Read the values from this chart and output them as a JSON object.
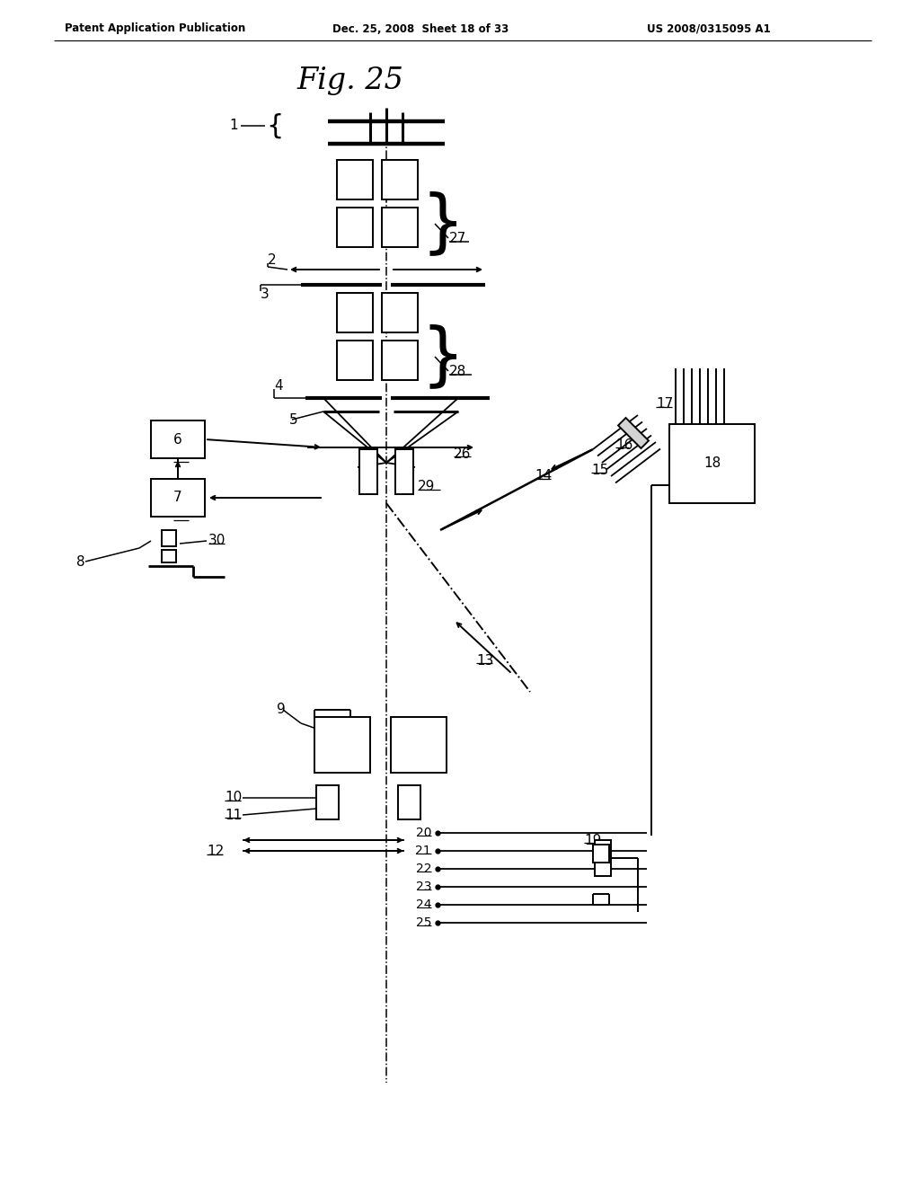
{
  "title": "Fig. 25",
  "header_left": "Patent Application Publication",
  "header_mid": "Dec. 25, 2008  Sheet 18 of 33",
  "header_right": "US 2008/0315095 A1",
  "bg_color": "#ffffff"
}
